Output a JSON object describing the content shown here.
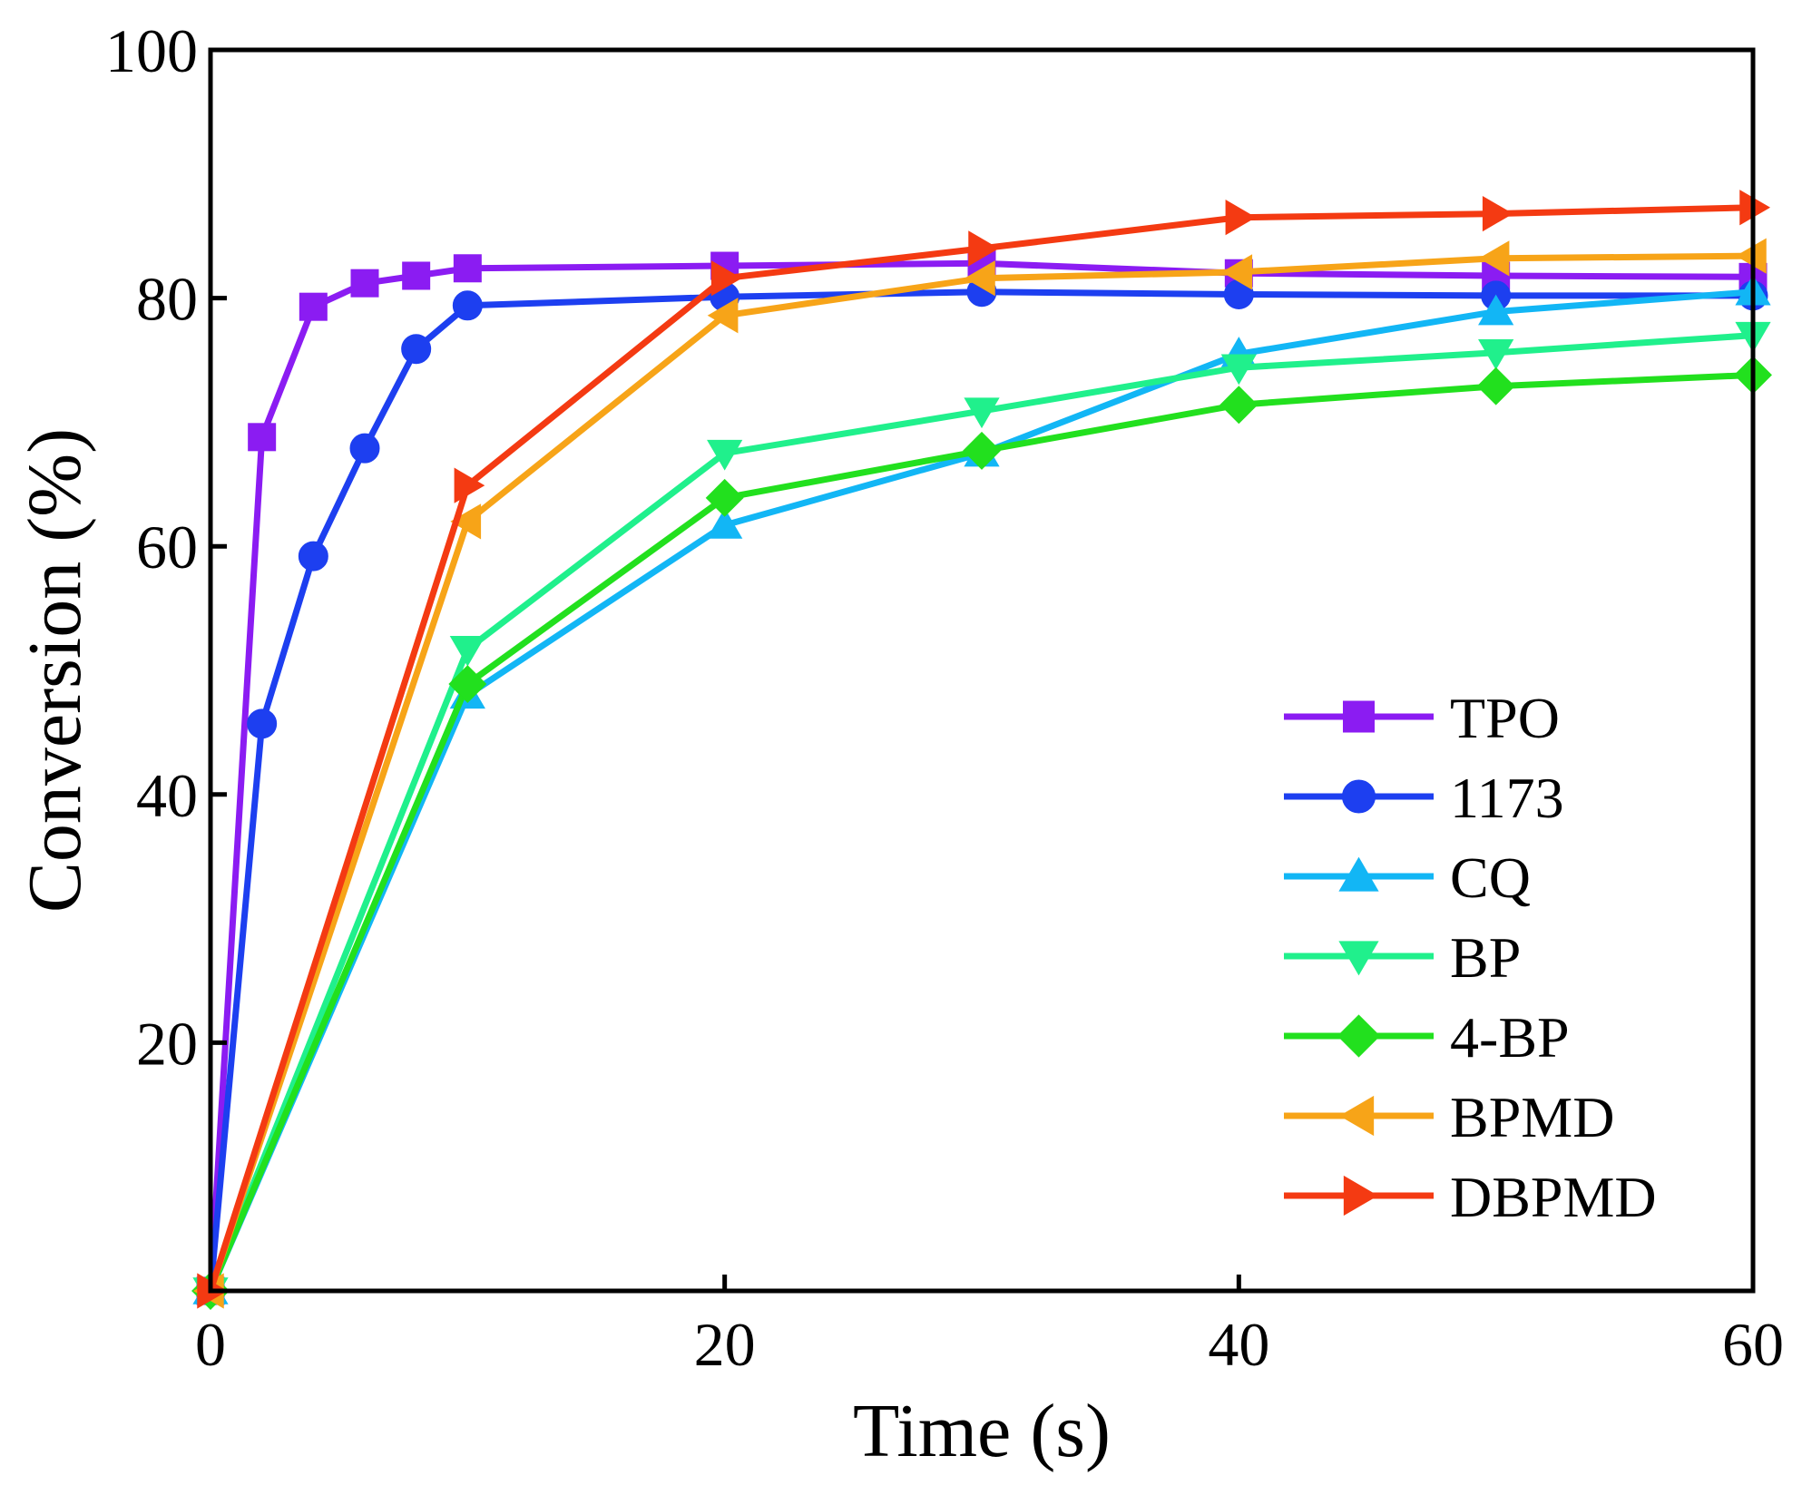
{
  "chart_data": {
    "type": "line",
    "title": "",
    "xlabel": "Time (s)",
    "ylabel": "Conversion (%)",
    "xlim": [
      0,
      60
    ],
    "ylim": [
      0,
      100
    ],
    "xticks": [
      0,
      20,
      40,
      60
    ],
    "yticks": [
      20,
      40,
      60,
      80,
      100
    ],
    "xtick_labels": [
      "0",
      "20",
      "40",
      "60"
    ],
    "ytick_labels": [
      "20",
      "40",
      "60",
      "80",
      "100"
    ],
    "grid": false,
    "legend_position": "bottom-right",
    "series": [
      {
        "name": "TPO",
        "color": "#8b1cf2",
        "marker": "square",
        "x": [
          0,
          2,
          4,
          6,
          8,
          10,
          20,
          30,
          40,
          50,
          60
        ],
        "y": [
          0,
          68.8,
          79.3,
          81.2,
          81.8,
          82.4,
          82.6,
          82.8,
          82.0,
          81.8,
          81.7
        ]
      },
      {
        "name": "1173",
        "color": "#1d3ff0",
        "marker": "circle",
        "x": [
          0,
          2,
          4,
          6,
          8,
          10,
          20,
          30,
          40,
          50,
          60
        ],
        "y": [
          0,
          45.7,
          59.2,
          67.9,
          75.9,
          79.4,
          80.1,
          80.5,
          80.3,
          80.2,
          80.2
        ]
      },
      {
        "name": "CQ",
        "color": "#12b6f5",
        "marker": "triangle-up",
        "x": [
          0,
          10,
          20,
          30,
          40,
          50,
          60
        ],
        "y": [
          0,
          48.0,
          61.7,
          67.5,
          75.5,
          78.9,
          80.5
        ]
      },
      {
        "name": "BP",
        "color": "#20f08c",
        "marker": "triangle-down",
        "x": [
          0,
          10,
          20,
          30,
          40,
          50,
          60
        ],
        "y": [
          0,
          51.7,
          67.5,
          70.9,
          74.4,
          75.6,
          77.0
        ]
      },
      {
        "name": "4-BP",
        "color": "#22e01e",
        "marker": "diamond",
        "x": [
          0,
          10,
          20,
          30,
          40,
          50,
          60
        ],
        "y": [
          0,
          48.9,
          63.9,
          67.7,
          71.4,
          72.9,
          73.8
        ]
      },
      {
        "name": "BPMD",
        "color": "#f7a418",
        "marker": "triangle-left",
        "x": [
          0,
          10,
          20,
          30,
          40,
          50,
          60
        ],
        "y": [
          0,
          62.0,
          78.6,
          81.6,
          82.1,
          83.2,
          83.4
        ]
      },
      {
        "name": "DBPMD",
        "color": "#f43a12",
        "marker": "triangle-right",
        "x": [
          0,
          10,
          20,
          30,
          40,
          50,
          60
        ],
        "y": [
          0,
          64.9,
          81.6,
          84.0,
          86.5,
          86.8,
          87.3
        ]
      }
    ]
  }
}
